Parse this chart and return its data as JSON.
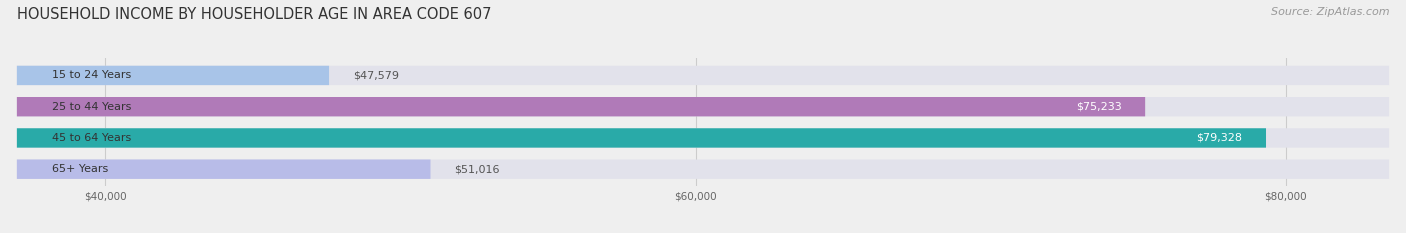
{
  "title": "HOUSEHOLD INCOME BY HOUSEHOLDER AGE IN AREA CODE 607",
  "source": "Source: ZipAtlas.com",
  "categories": [
    "15 to 24 Years",
    "25 to 44 Years",
    "45 to 64 Years",
    "65+ Years"
  ],
  "values": [
    47579,
    75233,
    79328,
    51016
  ],
  "bar_colors": [
    "#a8c4e8",
    "#b07ab8",
    "#29aaa8",
    "#b8bce8"
  ],
  "label_colors": [
    "#444444",
    "#ffffff",
    "#ffffff",
    "#444444"
  ],
  "xmin": 37000,
  "xmax": 83500,
  "xticks": [
    40000,
    60000,
    80000
  ],
  "xtick_labels": [
    "$40,000",
    "$60,000",
    "$80,000"
  ],
  "bg_color": "#efefef",
  "bar_bg_color": "#e2e2eb",
  "title_fontsize": 10.5,
  "source_fontsize": 8,
  "bar_height": 0.62,
  "y_label_fontsize": 8,
  "value_fontsize": 8
}
